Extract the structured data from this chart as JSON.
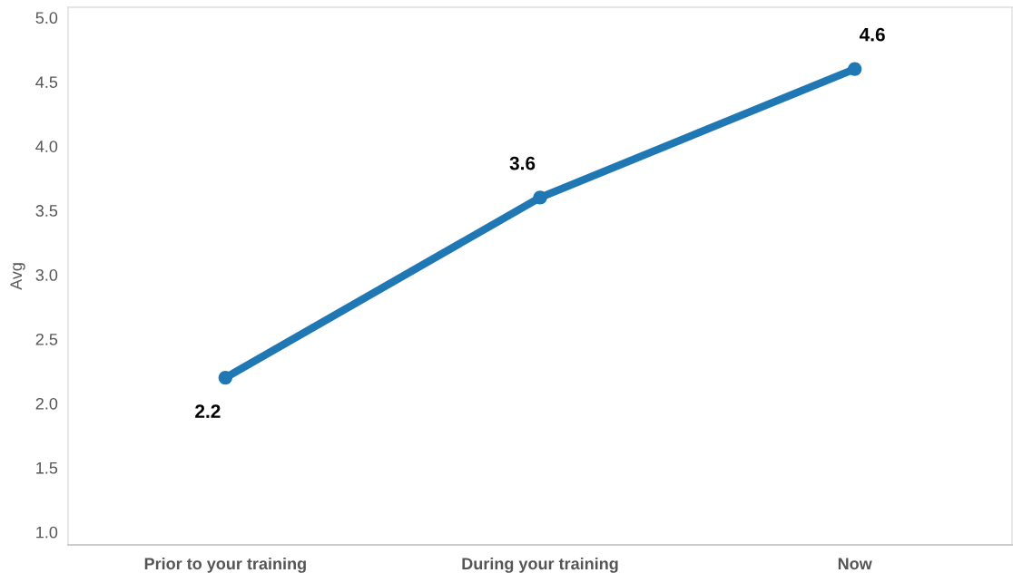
{
  "chart_data": {
    "type": "line",
    "ylabel": "Avg",
    "categories": [
      "Prior to your training",
      "During your training",
      "Now"
    ],
    "series": [
      {
        "color": "#1f77b4",
        "values": [
          2.2,
          3.6,
          4.6
        ]
      }
    ],
    "ylim": [
      0.9,
      5.08
    ],
    "yticks": [
      {
        "value": 1.0,
        "label": "1.0"
      },
      {
        "value": 1.5,
        "label": "1.5"
      },
      {
        "value": 2.0,
        "label": "2.0"
      },
      {
        "value": 2.5,
        "label": "2.5"
      },
      {
        "value": 3.0,
        "label": "3.0"
      },
      {
        "value": 3.5,
        "label": "3.5"
      },
      {
        "value": 4.0,
        "label": "4.0"
      },
      {
        "value": 4.5,
        "label": "4.5"
      },
      {
        "value": 5.0,
        "label": "5.0"
      }
    ],
    "marker": "circle",
    "line_style": "solid",
    "data_labels": true,
    "grid": false
  }
}
